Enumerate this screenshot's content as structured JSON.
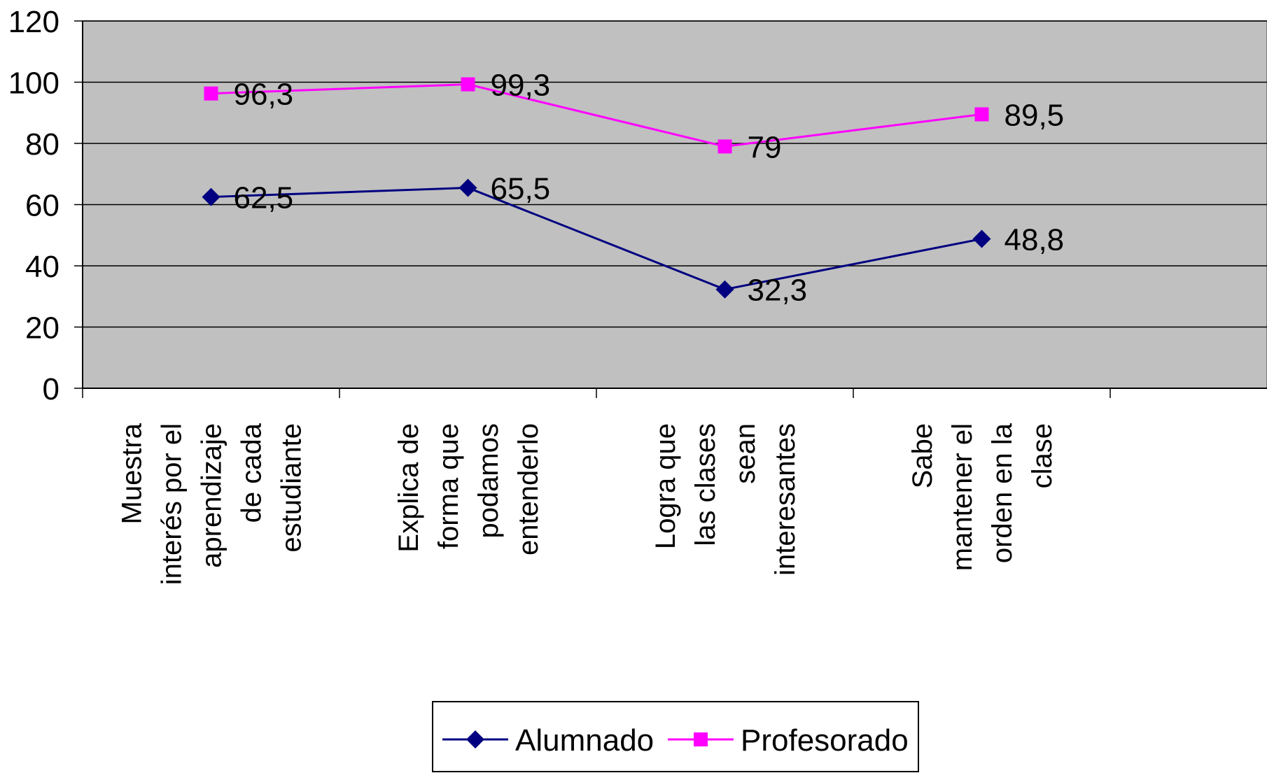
{
  "chart_data": {
    "type": "line",
    "categories": [
      [
        "Muestra",
        "interés por el",
        "aprendizaje",
        "de cada",
        "estudiante"
      ],
      [
        "Explica de",
        "forma que",
        "podamos",
        "entenderlo"
      ],
      [
        "Logra que",
        "las clases",
        "sean",
        "interesantes"
      ],
      [
        "Sabe",
        "mantener el",
        "orden en la",
        "clase"
      ]
    ],
    "series": [
      {
        "name": "Alumnado",
        "values": [
          62.5,
          65.5,
          32.3,
          48.8
        ],
        "labels": [
          "62,5",
          "65,5",
          "32,3",
          "48,8"
        ],
        "color": "#000080",
        "marker": "diamond"
      },
      {
        "name": "Profesorado",
        "values": [
          96.3,
          99.3,
          79,
          89.5
        ],
        "labels": [
          "96,3",
          "99,3",
          "79",
          "89,5"
        ],
        "color": "#FF00FF",
        "marker": "square"
      }
    ],
    "ylim": [
      0,
      120
    ],
    "yticks": [
      "0",
      "20",
      "40",
      "60",
      "80",
      "100",
      "120"
    ],
    "grid": true,
    "plot_background": "#C0C0C0",
    "legend_position": "bottom"
  }
}
